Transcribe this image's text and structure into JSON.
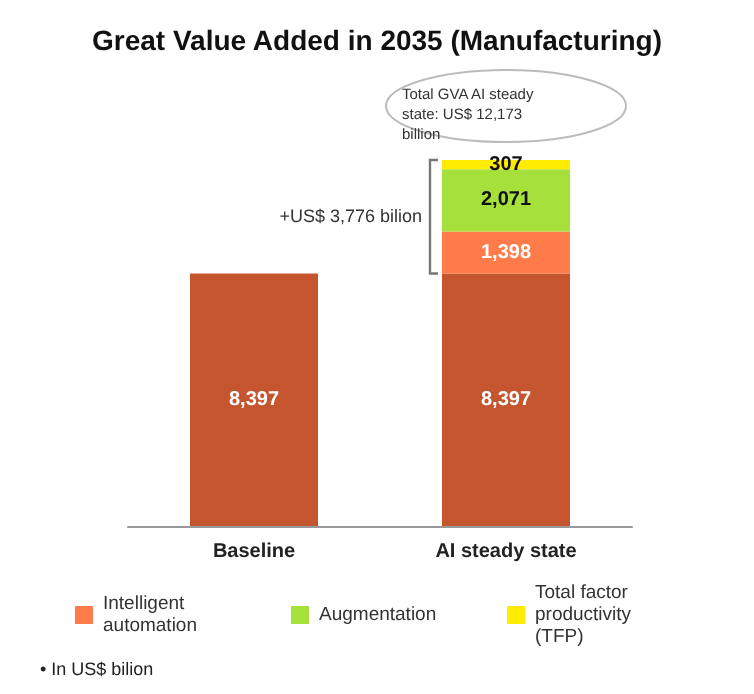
{
  "chart_data": {
    "type": "bar",
    "title": "Great Value Added in 2035 (Manufacturing)",
    "categories": [
      "Baseline",
      "AI steady state"
    ],
    "stacked": true,
    "grid": false,
    "legend": "bottom",
    "tick_labels": "x",
    "series": [
      {
        "color": "#c4552f",
        "values": [
          8397,
          8397
        ],
        "value_labels": [
          "8,397",
          "8,397"
        ]
      },
      {
        "name": "Intelligent automation",
        "color": "#ff7b4a",
        "values": [
          null,
          1398
        ],
        "value_labels": [
          null,
          "1,398"
        ]
      },
      {
        "name": "Augmentation",
        "color": "#a6e03a",
        "values": [
          null,
          2071
        ],
        "value_labels": [
          null,
          "2,071"
        ]
      },
      {
        "name": "Total factor productivity (TFP)",
        "color": "#ffec00",
        "values": [
          null,
          307
        ],
        "value_labels": [
          null,
          "307"
        ]
      }
    ],
    "annotations": [
      "Total GVA AI steady state: US$ 12,173 billion",
      "+US$ 3,776 bilion",
      "• In US$ bilion"
    ]
  }
}
